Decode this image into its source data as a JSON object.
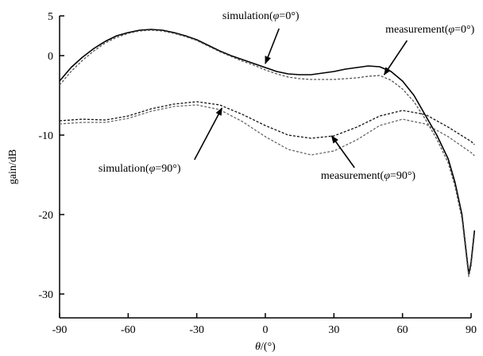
{
  "chart_data": {
    "type": "line",
    "xlabel_symbol": "θ",
    "xlabel_unit": "/(°)",
    "ylabel": "gain/dB",
    "xlim": [
      -90,
      90
    ],
    "ylim": [
      -33,
      5
    ],
    "xticks": [
      -90,
      -60,
      -30,
      0,
      30,
      60,
      90
    ],
    "yticks": [
      5,
      0,
      -10,
      -20,
      -30
    ],
    "xtick_labels": [
      "-90",
      "-60",
      "-30",
      "0",
      "30",
      "60",
      "90"
    ],
    "ytick_labels": [
      "5",
      "0",
      "-10",
      "-20",
      "-30"
    ],
    "grid": false,
    "series": [
      {
        "style": "solid",
        "color": "#000000",
        "points": [
          [
            -90,
            -3.2
          ],
          [
            -85,
            -1.5
          ],
          [
            -80,
            -0.2
          ],
          [
            -75,
            0.9
          ],
          [
            -70,
            1.8
          ],
          [
            -65,
            2.5
          ],
          [
            -60,
            2.9
          ],
          [
            -55,
            3.2
          ],
          [
            -50,
            3.3
          ],
          [
            -45,
            3.2
          ],
          [
            -40,
            2.9
          ],
          [
            -35,
            2.5
          ],
          [
            -30,
            2.0
          ],
          [
            -25,
            1.3
          ],
          [
            -20,
            0.6
          ],
          [
            -15,
            0.0
          ],
          [
            -10,
            -0.5
          ],
          [
            -5,
            -1.0
          ],
          [
            0,
            -1.5
          ],
          [
            5,
            -2.0
          ],
          [
            10,
            -2.3
          ],
          [
            15,
            -2.4
          ],
          [
            20,
            -2.4
          ],
          [
            25,
            -2.2
          ],
          [
            30,
            -2.0
          ],
          [
            35,
            -1.7
          ],
          [
            40,
            -1.5
          ],
          [
            45,
            -1.3
          ],
          [
            50,
            -1.4
          ],
          [
            55,
            -2.0
          ],
          [
            60,
            -3.2
          ],
          [
            65,
            -5.0
          ],
          [
            70,
            -7.5
          ],
          [
            75,
            -10.0
          ],
          [
            80,
            -13.0
          ],
          [
            83,
            -16.0
          ],
          [
            86,
            -20.0
          ],
          [
            88,
            -25.0
          ],
          [
            89,
            -27.5
          ],
          [
            90,
            -26.0
          ],
          [
            91.5,
            -22.0
          ]
        ]
      },
      {
        "style": "dashed",
        "color": "#555555",
        "points": [
          [
            -90,
            -3.7
          ],
          [
            -85,
            -2.0
          ],
          [
            -80,
            -0.6
          ],
          [
            -75,
            0.6
          ],
          [
            -70,
            1.6
          ],
          [
            -65,
            2.3
          ],
          [
            -60,
            2.8
          ],
          [
            -55,
            3.1
          ],
          [
            -50,
            3.2
          ],
          [
            -45,
            3.1
          ],
          [
            -40,
            2.8
          ],
          [
            -35,
            2.4
          ],
          [
            -30,
            1.9
          ],
          [
            -25,
            1.2
          ],
          [
            -20,
            0.5
          ],
          [
            -15,
            -0.1
          ],
          [
            -10,
            -0.7
          ],
          [
            -5,
            -1.2
          ],
          [
            0,
            -1.8
          ],
          [
            5,
            -2.3
          ],
          [
            10,
            -2.7
          ],
          [
            15,
            -2.9
          ],
          [
            20,
            -3.0
          ],
          [
            25,
            -3.0
          ],
          [
            30,
            -3.0
          ],
          [
            35,
            -2.9
          ],
          [
            40,
            -2.8
          ],
          [
            45,
            -2.6
          ],
          [
            50,
            -2.5
          ],
          [
            55,
            -3.1
          ],
          [
            60,
            -4.2
          ],
          [
            65,
            -5.8
          ],
          [
            70,
            -8.0
          ],
          [
            75,
            -10.5
          ],
          [
            80,
            -13.5
          ],
          [
            83,
            -16.5
          ],
          [
            86,
            -20.5
          ],
          [
            88,
            -25.5
          ],
          [
            89,
            -27.8
          ],
          [
            90,
            -26.5
          ],
          [
            91.5,
            -22.5
          ]
        ]
      },
      {
        "style": "dashed",
        "color": "#111111",
        "points": [
          [
            -90,
            -8.2
          ],
          [
            -80,
            -8.0
          ],
          [
            -70,
            -8.1
          ],
          [
            -60,
            -7.6
          ],
          [
            -50,
            -6.7
          ],
          [
            -40,
            -6.1
          ],
          [
            -30,
            -5.8
          ],
          [
            -20,
            -6.2
          ],
          [
            -10,
            -7.4
          ],
          [
            0,
            -8.8
          ],
          [
            10,
            -10.0
          ],
          [
            20,
            -10.4
          ],
          [
            30,
            -10.1
          ],
          [
            40,
            -9.0
          ],
          [
            50,
            -7.6
          ],
          [
            60,
            -6.9
          ],
          [
            70,
            -7.4
          ],
          [
            80,
            -9.0
          ],
          [
            90,
            -10.8
          ],
          [
            91.5,
            -11.2
          ]
        ]
      },
      {
        "style": "dashed",
        "color": "#666666",
        "points": [
          [
            -90,
            -8.6
          ],
          [
            -80,
            -8.4
          ],
          [
            -70,
            -8.4
          ],
          [
            -60,
            -7.9
          ],
          [
            -50,
            -7.0
          ],
          [
            -40,
            -6.4
          ],
          [
            -30,
            -6.2
          ],
          [
            -20,
            -6.8
          ],
          [
            -10,
            -8.3
          ],
          [
            0,
            -10.2
          ],
          [
            10,
            -11.8
          ],
          [
            20,
            -12.5
          ],
          [
            30,
            -12.0
          ],
          [
            40,
            -10.6
          ],
          [
            50,
            -8.8
          ],
          [
            60,
            -8.0
          ],
          [
            70,
            -8.6
          ],
          [
            80,
            -10.2
          ],
          [
            90,
            -12.2
          ],
          [
            91.5,
            -12.6
          ]
        ]
      }
    ],
    "annotations": [
      {
        "name": "sim0",
        "prefix": "simulation(",
        "symbol": "φ",
        "suffix": "=0°)",
        "text_x": -2,
        "text_y": 4.6,
        "arrow_from": [
          6,
          3.4
        ],
        "arrow_to": [
          0,
          -1.0
        ]
      },
      {
        "name": "meas0",
        "prefix": "measurement(",
        "symbol": "φ",
        "suffix": "=0°)",
        "text_x": 72,
        "text_y": 2.9,
        "arrow_from": [
          62,
          1.9
        ],
        "arrow_to": [
          52,
          -2.4
        ]
      },
      {
        "name": "sim90",
        "prefix": "simulation(",
        "symbol": "φ",
        "suffix": "=90°)",
        "text_x": -55,
        "text_y": -14.6,
        "arrow_from": [
          -31,
          -13.1
        ],
        "arrow_to": [
          -19,
          -6.6
        ]
      },
      {
        "name": "meas90",
        "prefix": "measurement(",
        "symbol": "φ",
        "suffix": "=90°)",
        "text_x": 45,
        "text_y": -15.5,
        "arrow_from": [
          39,
          -14.1
        ],
        "arrow_to": [
          29,
          -10.1
        ]
      }
    ]
  }
}
